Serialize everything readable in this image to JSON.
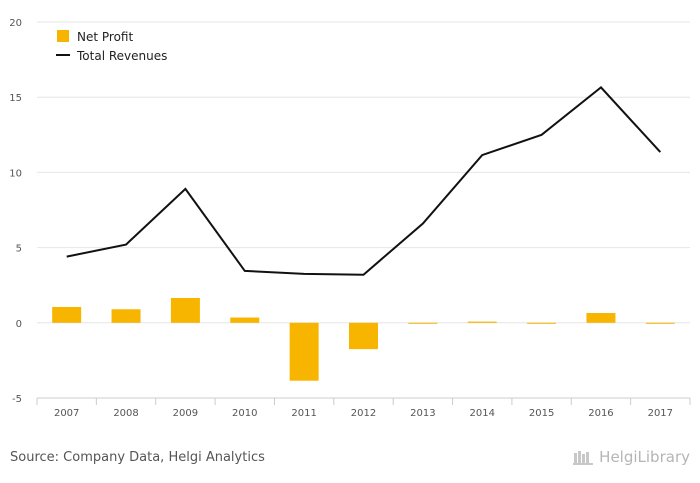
{
  "chart_data": {
    "type": "bar+line",
    "categories": [
      "2007",
      "2008",
      "2009",
      "2010",
      "2011",
      "2012",
      "2013",
      "2014",
      "2015",
      "2016",
      "2017"
    ],
    "series": [
      {
        "name": "Net Profit",
        "type": "bar",
        "color": "#f7b500",
        "values": [
          1.05,
          0.9,
          1.65,
          0.35,
          -3.85,
          -1.75,
          -0.05,
          0.08,
          -0.05,
          0.65,
          -0.05
        ]
      },
      {
        "name": "Total Revenues",
        "type": "line",
        "color": "#111111",
        "values": [
          4.4,
          5.2,
          8.9,
          3.45,
          3.25,
          3.2,
          6.6,
          11.15,
          12.5,
          15.65,
          11.35
        ]
      }
    ],
    "yticks": [
      20,
      15,
      10,
      5,
      0,
      -5
    ],
    "ylim": [
      -5,
      20
    ],
    "grid": true,
    "legend_position": "top-left"
  },
  "footer": {
    "source": "Source: Company Data, Helgi Analytics",
    "brand": "HelgiLibrary"
  }
}
